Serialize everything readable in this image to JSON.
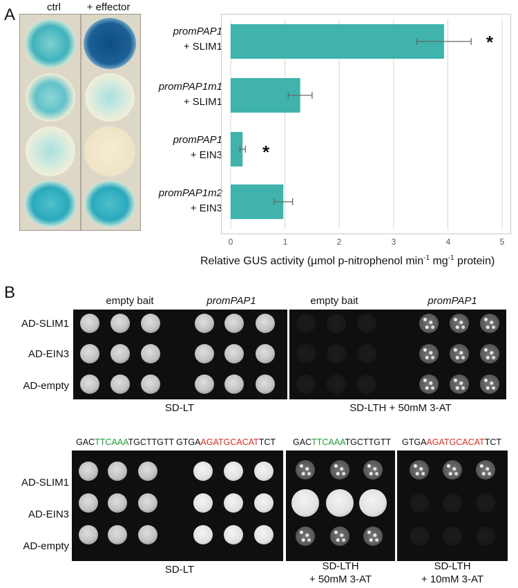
{
  "panel_a": {
    "letter": "A",
    "photo_labels": {
      "ctrl": "ctrl",
      "effector": "+ effector"
    },
    "bars": [
      {
        "line1": "promPAP1",
        "line2": "+ SLIM1"
      },
      {
        "line1": "promPAP1m1",
        "line2": "+ SLIM1"
      },
      {
        "line1": "promPAP1",
        "line2": "+ EIN3"
      },
      {
        "line1": "promPAP1m2",
        "line2": "+ EIN3"
      }
    ],
    "significance_marks": [
      "*",
      "*"
    ],
    "x_ticks": [
      "0",
      "1",
      "2",
      "3",
      "4",
      "5"
    ],
    "xlabel_main": "Relative GUS activity (µmol p-nitrophenol min",
    "xlabel_sup1": "-1",
    "xlabel_mid": " mg",
    "xlabel_sup2": "-1",
    "xlabel_end": " protein)"
  },
  "chart_data": {
    "type": "bar",
    "orientation": "horizontal",
    "categories": [
      "promPAP1 + SLIM1",
      "promPAP1m1 + SLIM1",
      "promPAP1 + EIN3",
      "promPAP1m2 + EIN3"
    ],
    "values": [
      3.93,
      1.28,
      0.22,
      0.97
    ],
    "errors": [
      0.5,
      0.22,
      0.05,
      0.17
    ],
    "xlabel": "Relative GUS activity (µmol p-nitrophenol min-1 mg-1 protein)",
    "xlim": [
      0,
      5
    ],
    "grid": true,
    "bar_color": "#3fb3ac"
  },
  "panel_b": {
    "letter": "B",
    "top": {
      "headers": [
        "empty bait",
        "promPAP1",
        "empty bait",
        "promPAP1"
      ],
      "rows": [
        "AD-SLIM1",
        "AD-EIN3",
        "AD-empty"
      ],
      "media": [
        "SD-LT",
        "SD-LTH + 50mM 3-AT"
      ]
    },
    "bottom": {
      "seq1": {
        "pre": "GAC",
        "mid": "TTCAAA",
        "post": "TGCTTGTT"
      },
      "seq2": {
        "pre": "GTGA",
        "mid": "AGATGCACAT",
        "post": "TCT"
      },
      "seq3": {
        "pre": "GAC",
        "mid": "TTCAAA",
        "post": "TGCTTGTT"
      },
      "seq4": {
        "pre": "GTGA",
        "mid": "AGATGCACAT",
        "post": "TCT"
      },
      "rows": [
        "AD-SLIM1",
        "AD-EIN3",
        "AD-empty"
      ],
      "media": [
        {
          "l1": "SD-LT",
          "l2": ""
        },
        {
          "l1": "SD-LTH",
          "l2": "+ 50mM 3-AT"
        },
        {
          "l1": "SD-LTH",
          "l2": "+ 10mM 3-AT"
        }
      ]
    }
  }
}
